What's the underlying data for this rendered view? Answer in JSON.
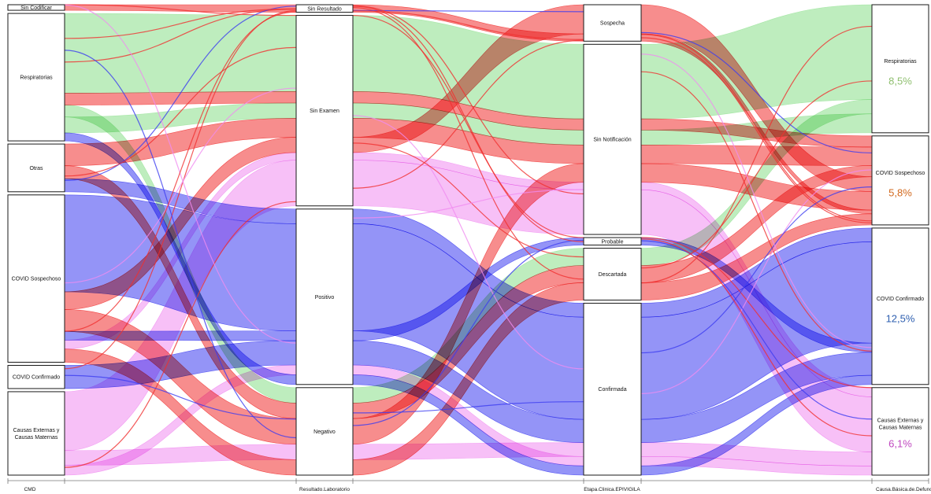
{
  "axes": [
    {
      "label": "CMD"
    },
    {
      "label": "Resultado.Laboratorio"
    },
    {
      "label": "Etapa.Clinica.EPIVIGILA"
    },
    {
      "label": "Causa.Básica.de.Defunción"
    }
  ],
  "nodes": {
    "cmd": [
      {
        "label": "Sin Codificar",
        "share": 0.012
      },
      {
        "label": "Respiratorias",
        "share": 0.275
      },
      {
        "label": "Otras",
        "share": 0.103
      },
      {
        "label": "COVID Sospechoso",
        "share": 0.361
      },
      {
        "label": "COVID Confirmado",
        "share": 0.05
      },
      {
        "label": "Causas Externas y\nCausas Maternas",
        "share": 0.18
      }
    ],
    "lab": [
      {
        "label": "Sin Resultado",
        "share": 0.016
      },
      {
        "label": "Sin Examen",
        "share": 0.405
      },
      {
        "label": "Positivo",
        "share": 0.373
      },
      {
        "label": "Negativo",
        "share": 0.186
      }
    ],
    "etapa": [
      {
        "label": "Sospecha",
        "share": 0.078
      },
      {
        "label": "Sin Notificación",
        "share": 0.407
      },
      {
        "label": "Probable",
        "share": 0.016
      },
      {
        "label": "Descartada",
        "share": 0.111
      },
      {
        "label": "Confirmada",
        "share": 0.368
      }
    ],
    "causa": [
      {
        "label": "Respiratorias",
        "share": 0.262,
        "pct": "8,5%",
        "pct_color": "#8fbf6f"
      },
      {
        "label": "COVID Sospechoso",
        "share": 0.182,
        "pct": "5,8%",
        "pct_color": "#d2691e"
      },
      {
        "label": "COVID Confirmado",
        "share": 0.32,
        "pct": "12,5%",
        "pct_color": "#2e5fb0"
      },
      {
        "label": "Causas Externas y\nCausas Maternas",
        "share": 0.179,
        "pct": "6,1%",
        "pct_color": "#c048c0"
      }
    ]
  },
  "colors": {
    "respiratorias": "#9be39b",
    "covid_sospechoso": "#f03030",
    "covid_confirmado": "#3c3cf0",
    "causas_externas": "#f08cf0",
    "otras": "#f03030"
  }
}
